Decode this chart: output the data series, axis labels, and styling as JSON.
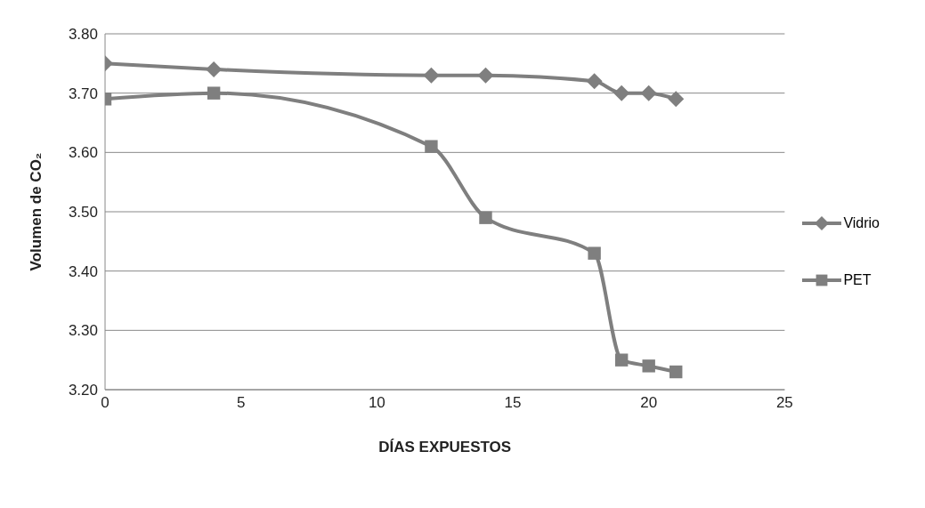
{
  "chart_data": {
    "type": "line",
    "xlabel": "DÍAS EXPUESTOS",
    "ylabel": "Volumen de CO₂",
    "x": [
      0,
      4,
      12,
      14,
      18,
      19,
      20,
      21
    ],
    "series": [
      {
        "name": "Vidrio",
        "color": "#7f7f7f",
        "marker": "diamond",
        "values": [
          3.75,
          3.74,
          3.73,
          3.73,
          3.72,
          3.7,
          3.7,
          3.69
        ]
      },
      {
        "name": "PET",
        "color": "#7f7f7f",
        "marker": "square",
        "values": [
          3.69,
          3.7,
          3.61,
          3.49,
          3.43,
          3.25,
          3.24,
          3.23
        ]
      }
    ],
    "xlim": [
      0,
      25
    ],
    "xticks": [
      0,
      5,
      10,
      15,
      20,
      25
    ],
    "ylim": [
      3.2,
      3.8
    ],
    "yticks": [
      {
        "value": 3.2,
        "label": "3.20"
      },
      {
        "value": 3.3,
        "label": "3.30"
      },
      {
        "value": 3.4,
        "label": "3.40"
      },
      {
        "value": 3.5,
        "label": "3.50"
      },
      {
        "value": 3.6,
        "label": "3.60"
      },
      {
        "value": 3.7,
        "label": "3.70"
      },
      {
        "value": 3.8,
        "label": "3.80"
      }
    ],
    "grid": "y",
    "legend": "right",
    "line_style": "solid"
  }
}
